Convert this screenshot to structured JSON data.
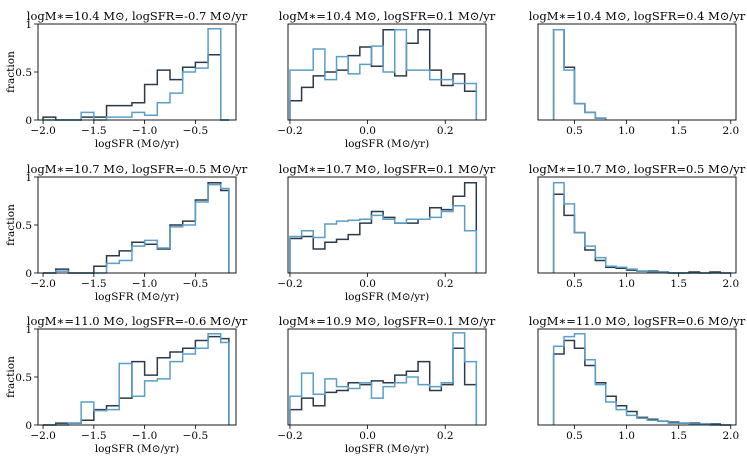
{
  "colors": {
    "dark": "#2b3a4a",
    "light": "#5b9fc8",
    "axis": "#000000"
  },
  "chart_data": [
    {
      "type": "histogram",
      "title": "logM∗=10.4 M⊙, logSFR=-0.7 M⊙/yr",
      "xlabel": "logSFR (M⊙/yr)",
      "ylabel": "fraction",
      "xlim": [
        -2.05,
        -0.1
      ],
      "ylim": [
        0,
        1
      ],
      "xticks": [
        -2.0,
        -1.5,
        -1.0,
        -0.5
      ],
      "xtick_labels": [
        "−2.0",
        "−1.5",
        "−1.0",
        "−0.5"
      ],
      "yticks": [
        0,
        0.5,
        1
      ],
      "ytick_labels": [
        "0",
        "0.5",
        "1"
      ],
      "bin_edges": [
        -2.0,
        -1.875,
        -1.75,
        -1.625,
        -1.5,
        -1.375,
        -1.25,
        -1.125,
        -1.0,
        -0.875,
        -0.75,
        -0.625,
        -0.5,
        -0.375,
        -0.25,
        -0.17
      ],
      "series": [
        {
          "name": "dark",
          "values": [
            0.03,
            0.0,
            0.0,
            0.03,
            0.03,
            0.15,
            0.15,
            0.18,
            0.37,
            0.52,
            0.42,
            0.55,
            0.6,
            0.68,
            0.0
          ]
        },
        {
          "name": "light",
          "values": [
            0.0,
            0.0,
            0.0,
            0.08,
            0.0,
            0.03,
            0.03,
            0.08,
            0.05,
            0.18,
            0.28,
            0.5,
            0.54,
            0.95,
            0.0
          ]
        }
      ]
    },
    {
      "type": "histogram",
      "title": "logM∗=10.4 M⊙, logSFR=0.1 M⊙/yr",
      "xlabel": "logSFR (M⊙/yr)",
      "ylabel": "",
      "xlim": [
        -0.205,
        0.305
      ],
      "ylim": [
        0,
        1
      ],
      "xticks": [
        -0.2,
        0.0,
        0.2
      ],
      "xtick_labels": [
        "−0.2",
        "0.0",
        "0.2"
      ],
      "yticks": [],
      "ytick_labels": [],
      "bin_edges": [
        -0.2,
        -0.17,
        -0.14,
        -0.11,
        -0.08,
        -0.05,
        -0.02,
        0.01,
        0.04,
        0.07,
        0.1,
        0.13,
        0.16,
        0.19,
        0.22,
        0.25,
        0.28
      ],
      "series": [
        {
          "name": "dark",
          "values": [
            0.2,
            0.34,
            0.46,
            0.5,
            0.52,
            0.67,
            0.76,
            0.56,
            0.94,
            0.46,
            0.8,
            0.94,
            0.52,
            0.36,
            0.48,
            0.3
          ]
        },
        {
          "name": "light",
          "values": [
            0.52,
            0.52,
            0.74,
            0.42,
            0.66,
            0.48,
            0.58,
            0.77,
            0.5,
            0.94,
            0.52,
            0.52,
            0.42,
            0.42,
            0.38,
            0.38
          ]
        }
      ]
    },
    {
      "type": "histogram",
      "title": "logM∗=10.4 M⊙, logSFR=0.4 M⊙/yr",
      "xlabel": "",
      "ylabel": "",
      "xlim": [
        0.15,
        2.05
      ],
      "ylim": [
        0,
        1
      ],
      "xticks": [
        0.5,
        1.0,
        1.5,
        2.0
      ],
      "xtick_labels": [
        "0.5",
        "1.0",
        "1.5",
        "2.0"
      ],
      "yticks": [],
      "ytick_labels": [],
      "bin_edges": [
        0.3,
        0.4,
        0.5,
        0.6,
        0.7,
        0.8
      ],
      "series": [
        {
          "name": "dark",
          "values": [
            0.94,
            0.55,
            0.17,
            0.08,
            0.02
          ]
        },
        {
          "name": "light",
          "values": [
            0.94,
            0.52,
            0.17,
            0.08,
            0.02
          ]
        }
      ]
    },
    {
      "type": "histogram",
      "title": "logM∗=10.7 M⊙, logSFR=-0.5 M⊙/yr",
      "xlabel": "logSFR (M⊙/yr)",
      "ylabel": "fraction",
      "xlim": [
        -2.05,
        -0.1
      ],
      "ylim": [
        0,
        1
      ],
      "xticks": [
        -2.0,
        -1.5,
        -1.0,
        -0.5
      ],
      "xtick_labels": [
        "−2.0",
        "−1.5",
        "−1.0",
        "−0.5"
      ],
      "yticks": [
        0,
        0.5,
        1
      ],
      "ytick_labels": [
        "0",
        "0.5",
        "1"
      ],
      "bin_edges": [
        -2.0,
        -1.875,
        -1.75,
        -1.625,
        -1.5,
        -1.375,
        -1.25,
        -1.125,
        -1.0,
        -0.875,
        -0.75,
        -0.625,
        -0.5,
        -0.375,
        -0.25,
        -0.17
      ],
      "series": [
        {
          "name": "dark",
          "values": [
            0.0,
            0.04,
            0.0,
            0.0,
            0.07,
            0.18,
            0.23,
            0.32,
            0.3,
            0.25,
            0.5,
            0.54,
            0.76,
            0.94,
            0.86
          ]
        },
        {
          "name": "light",
          "values": [
            0.0,
            0.02,
            0.0,
            0.0,
            0.0,
            0.1,
            0.13,
            0.28,
            0.34,
            0.26,
            0.48,
            0.5,
            0.74,
            0.92,
            0.88
          ]
        }
      ]
    },
    {
      "type": "histogram",
      "title": "logM∗=10.7 M⊙, logSFR=0.1 M⊙/yr",
      "xlabel": "logSFR (M⊙/yr)",
      "ylabel": "",
      "xlim": [
        -0.205,
        0.305
      ],
      "ylim": [
        0,
        1
      ],
      "xticks": [
        -0.2,
        0.0,
        0.2
      ],
      "xtick_labels": [
        "−0.2",
        "0.0",
        "0.2"
      ],
      "yticks": [],
      "ytick_labels": [],
      "bin_edges": [
        -0.2,
        -0.17,
        -0.14,
        -0.11,
        -0.08,
        -0.05,
        -0.02,
        0.01,
        0.04,
        0.07,
        0.1,
        0.13,
        0.16,
        0.19,
        0.22,
        0.25,
        0.28
      ],
      "series": [
        {
          "name": "dark",
          "values": [
            0.36,
            0.38,
            0.25,
            0.32,
            0.35,
            0.4,
            0.52,
            0.64,
            0.58,
            0.52,
            0.52,
            0.56,
            0.68,
            0.66,
            0.8,
            0.94
          ]
        },
        {
          "name": "light",
          "values": [
            0.38,
            0.44,
            0.37,
            0.51,
            0.54,
            0.55,
            0.56,
            0.6,
            0.56,
            0.52,
            0.56,
            0.56,
            0.58,
            0.64,
            0.7,
            0.44
          ]
        }
      ]
    },
    {
      "type": "histogram",
      "title": "logM∗=10.7 M⊙, logSFR=0.5 M⊙/yr",
      "xlabel": "",
      "ylabel": "",
      "xlim": [
        0.15,
        2.05
      ],
      "ylim": [
        0,
        1
      ],
      "xticks": [
        0.5,
        1.0,
        1.5,
        2.0
      ],
      "xtick_labels": [
        "0.5",
        "1.0",
        "1.5",
        "2.0"
      ],
      "yticks": [],
      "ytick_labels": [],
      "bin_edges": [
        0.3,
        0.4,
        0.5,
        0.6,
        0.7,
        0.8,
        0.9,
        1.0,
        1.1,
        1.2,
        1.3,
        1.4,
        1.5,
        1.6,
        1.7,
        1.8,
        1.9,
        2.0
      ],
      "series": [
        {
          "name": "dark",
          "values": [
            0.82,
            0.6,
            0.42,
            0.24,
            0.13,
            0.06,
            0.05,
            0.03,
            0.02,
            0.02,
            0.01,
            0.0,
            0.0,
            0.01,
            0.0,
            0.01,
            0.0
          ]
        },
        {
          "name": "light",
          "values": [
            0.94,
            0.72,
            0.42,
            0.28,
            0.16,
            0.07,
            0.06,
            0.04,
            0.02,
            0.01,
            0.01,
            0.0,
            0.0,
            0.0,
            0.0,
            0.0,
            0.0
          ]
        }
      ]
    },
    {
      "type": "histogram",
      "title": "logM∗=11.0 M⊙, logSFR=-0.6 M⊙/yr",
      "xlabel": "logSFR (M⊙/yr)",
      "ylabel": "fraction",
      "xlim": [
        -2.05,
        -0.1
      ],
      "ylim": [
        0,
        1
      ],
      "xticks": [
        -2.0,
        -1.5,
        -1.0,
        -0.5
      ],
      "xtick_labels": [
        "−2.0",
        "−1.5",
        "−1.0",
        "−0.5"
      ],
      "yticks": [
        0,
        0.5,
        1
      ],
      "ytick_labels": [
        "0",
        "0.5",
        "1"
      ],
      "bin_edges": [
        -2.0,
        -1.875,
        -1.75,
        -1.625,
        -1.5,
        -1.375,
        -1.25,
        -1.125,
        -1.0,
        -0.875,
        -0.75,
        -0.625,
        -0.5,
        -0.375,
        -0.25,
        -0.17
      ],
      "series": [
        {
          "name": "dark",
          "values": [
            0.0,
            0.02,
            0.02,
            0.05,
            0.16,
            0.2,
            0.28,
            0.66,
            0.52,
            0.7,
            0.76,
            0.8,
            0.88,
            0.92,
            0.9
          ]
        },
        {
          "name": "light",
          "values": [
            0.0,
            0.0,
            0.02,
            0.24,
            0.15,
            0.16,
            0.64,
            0.3,
            0.46,
            0.48,
            0.66,
            0.74,
            0.8,
            0.95,
            0.86
          ]
        }
      ]
    },
    {
      "type": "histogram",
      "title": "logM∗=10.9 M⊙, logSFR=0.1 M⊙/yr",
      "xlabel": "logSFR (M⊙/yr)",
      "ylabel": "",
      "xlim": [
        -0.205,
        0.305
      ],
      "ylim": [
        0,
        1
      ],
      "xticks": [
        -0.2,
        0.0,
        0.2
      ],
      "xtick_labels": [
        "−0.2",
        "0.0",
        "0.2"
      ],
      "yticks": [],
      "ytick_labels": [],
      "bin_edges": [
        -0.2,
        -0.17,
        -0.14,
        -0.11,
        -0.08,
        -0.05,
        -0.02,
        0.01,
        0.04,
        0.07,
        0.1,
        0.13,
        0.16,
        0.19,
        0.22,
        0.25,
        0.28
      ],
      "series": [
        {
          "name": "dark",
          "values": [
            0.16,
            0.28,
            0.2,
            0.34,
            0.36,
            0.44,
            0.42,
            0.46,
            0.44,
            0.52,
            0.56,
            0.66,
            0.36,
            0.42,
            0.8,
            0.42
          ]
        },
        {
          "name": "light",
          "values": [
            0.3,
            0.54,
            0.32,
            0.48,
            0.4,
            0.38,
            0.44,
            0.28,
            0.4,
            0.44,
            0.5,
            0.42,
            0.4,
            0.44,
            0.96,
            0.66
          ]
        }
      ]
    },
    {
      "type": "histogram",
      "title": "logM∗=11.0 M⊙, logSFR=0.6 M⊙/yr",
      "xlabel": "",
      "ylabel": "",
      "xlim": [
        0.15,
        2.05
      ],
      "ylim": [
        0,
        1
      ],
      "xticks": [
        0.5,
        1.0,
        1.5,
        2.0
      ],
      "xtick_labels": [
        "0.5",
        "1.0",
        "1.5",
        "2.0"
      ],
      "yticks": [],
      "ytick_labels": [],
      "bin_edges": [
        0.3,
        0.4,
        0.5,
        0.6,
        0.7,
        0.8,
        0.9,
        1.0,
        1.1,
        1.2,
        1.3,
        1.4,
        1.5,
        1.6,
        1.7,
        1.8,
        1.9,
        2.0
      ],
      "series": [
        {
          "name": "dark",
          "values": [
            0.74,
            0.88,
            0.8,
            0.62,
            0.44,
            0.3,
            0.2,
            0.14,
            0.08,
            0.06,
            0.04,
            0.03,
            0.02,
            0.02,
            0.01,
            0.01,
            0.0
          ]
        },
        {
          "name": "light",
          "values": [
            0.82,
            0.92,
            0.95,
            0.68,
            0.42,
            0.24,
            0.16,
            0.1,
            0.07,
            0.05,
            0.04,
            0.02,
            0.02,
            0.01,
            0.01,
            0.0,
            0.0
          ]
        }
      ]
    }
  ]
}
